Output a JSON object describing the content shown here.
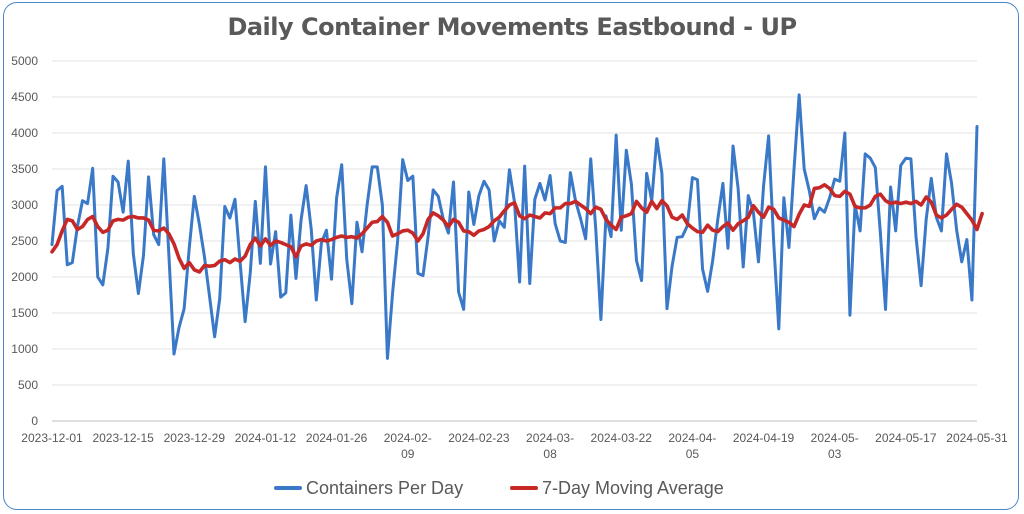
{
  "chart_data": {
    "type": "line",
    "title": "Daily Container Movements Eastbound - UP",
    "xlabel": "",
    "ylabel": "",
    "ylim": [
      0,
      5000
    ],
    "yticks": [
      0,
      500,
      1000,
      1500,
      2000,
      2500,
      3000,
      3500,
      4000,
      4500,
      5000
    ],
    "x_start": "2023-12-01",
    "x_end": "2024-05-31",
    "x_tick_labels": [
      [
        "2023-12-01"
      ],
      [
        "2023-12-15"
      ],
      [
        "2023-12-29"
      ],
      [
        "2024-01-12"
      ],
      [
        "2024-01-26"
      ],
      [
        "2024-02-",
        "09"
      ],
      [
        "2024-02-23"
      ],
      [
        "2024-03-",
        "08"
      ],
      [
        "2024-03-22"
      ],
      [
        "2024-04-",
        "05"
      ],
      [
        "2024-04-19"
      ],
      [
        "2024-05-",
        "03"
      ],
      [
        "2024-05-17"
      ],
      [
        "2024-05-31"
      ]
    ],
    "grid": true,
    "legend_position": "bottom",
    "series": [
      {
        "name": "Containers Per Day",
        "color": "#3a78c8",
        "values": [
          2450,
          3200,
          3260,
          2170,
          2200,
          2700,
          3060,
          3020,
          3510,
          2000,
          1890,
          2400,
          3400,
          3320,
          2900,
          3610,
          2320,
          1770,
          2300,
          3390,
          2590,
          2450,
          3640,
          2300,
          930,
          1300,
          1560,
          2400,
          3120,
          2730,
          2280,
          1730,
          1170,
          1700,
          2980,
          2820,
          3080,
          2210,
          1380,
          2050,
          3050,
          2190,
          3530,
          2180,
          2630,
          1720,
          1780,
          2860,
          1980,
          2790,
          3270,
          2670,
          1680,
          2470,
          2650,
          1970,
          3100,
          3560,
          2240,
          1630,
          2760,
          2350,
          3000,
          3530,
          3530,
          3000,
          870,
          1770,
          2500,
          3630,
          3340,
          3400,
          2050,
          2020,
          2560,
          3210,
          3120,
          2800,
          2610,
          3320,
          1790,
          1550,
          3180,
          2730,
          3130,
          3330,
          3210,
          2500,
          2780,
          2690,
          3490,
          3040,
          1930,
          3540,
          1910,
          3080,
          3300,
          3070,
          3410,
          2740,
          2500,
          2480,
          3450,
          3060,
          2810,
          2530,
          3640,
          2650,
          1410,
          2850,
          2560,
          3970,
          2650,
          3760,
          3290,
          2230,
          1950,
          3440,
          3060,
          3920,
          3440,
          1560,
          2150,
          2550,
          2560,
          2710,
          3380,
          3350,
          2110,
          1800,
          2230,
          2800,
          3300,
          2400,
          3820,
          3230,
          2140,
          3130,
          2900,
          2210,
          3260,
          3960,
          2480,
          1280,
          3100,
          2410,
          3500,
          4530,
          3500,
          3200,
          2810,
          2960,
          2900,
          3100,
          3360,
          3330,
          4000,
          1470,
          3000,
          2640,
          3710,
          3650,
          3520,
          2600,
          1550,
          3250,
          2640,
          3550,
          3650,
          3640,
          2560,
          1880,
          2800,
          3370,
          2830,
          2640,
          3710,
          3300,
          2650,
          2210,
          2520,
          1680,
          4090
        ]
      },
      {
        "name": "7-Day Moving Average",
        "color": "#c62828",
        "values": [
          2350,
          2450,
          2640,
          2800,
          2780,
          2660,
          2700,
          2800,
          2840,
          2700,
          2620,
          2650,
          2780,
          2800,
          2790,
          2830,
          2840,
          2820,
          2820,
          2790,
          2650,
          2640,
          2680,
          2600,
          2460,
          2260,
          2120,
          2200,
          2100,
          2070,
          2160,
          2150,
          2160,
          2220,
          2240,
          2200,
          2250,
          2220,
          2290,
          2450,
          2540,
          2430,
          2530,
          2440,
          2500,
          2480,
          2450,
          2420,
          2280,
          2430,
          2460,
          2440,
          2500,
          2520,
          2500,
          2520,
          2550,
          2570,
          2550,
          2560,
          2540,
          2600,
          2680,
          2760,
          2770,
          2840,
          2760,
          2570,
          2600,
          2640,
          2650,
          2610,
          2500,
          2600,
          2800,
          2890,
          2850,
          2790,
          2700,
          2800,
          2760,
          2640,
          2630,
          2580,
          2640,
          2660,
          2700,
          2780,
          2830,
          2920,
          3000,
          3030,
          2850,
          2810,
          2860,
          2840,
          2820,
          2890,
          2880,
          2960,
          2960,
          3020,
          3020,
          3050,
          3000,
          2950,
          2880,
          2970,
          2940,
          2800,
          2720,
          2660,
          2830,
          2850,
          2880,
          3050,
          2960,
          2900,
          3050,
          2950,
          3060,
          2990,
          2830,
          2800,
          2860,
          2740,
          2680,
          2630,
          2620,
          2720,
          2650,
          2630,
          2700,
          2750,
          2650,
          2740,
          2780,
          2830,
          2990,
          2900,
          2830,
          2970,
          2940,
          2820,
          2790,
          2760,
          2700,
          2870,
          3000,
          2980,
          3230,
          3240,
          3280,
          3230,
          3130,
          3120,
          3190,
          3150,
          2980,
          2960,
          2960,
          3000,
          3120,
          3150,
          3060,
          3020,
          3040,
          3020,
          3040,
          3020,
          3050,
          3000,
          3110,
          3040,
          2860,
          2820,
          2860,
          2940,
          3010,
          2970,
          2880,
          2790,
          2660,
          2880
        ]
      }
    ]
  }
}
